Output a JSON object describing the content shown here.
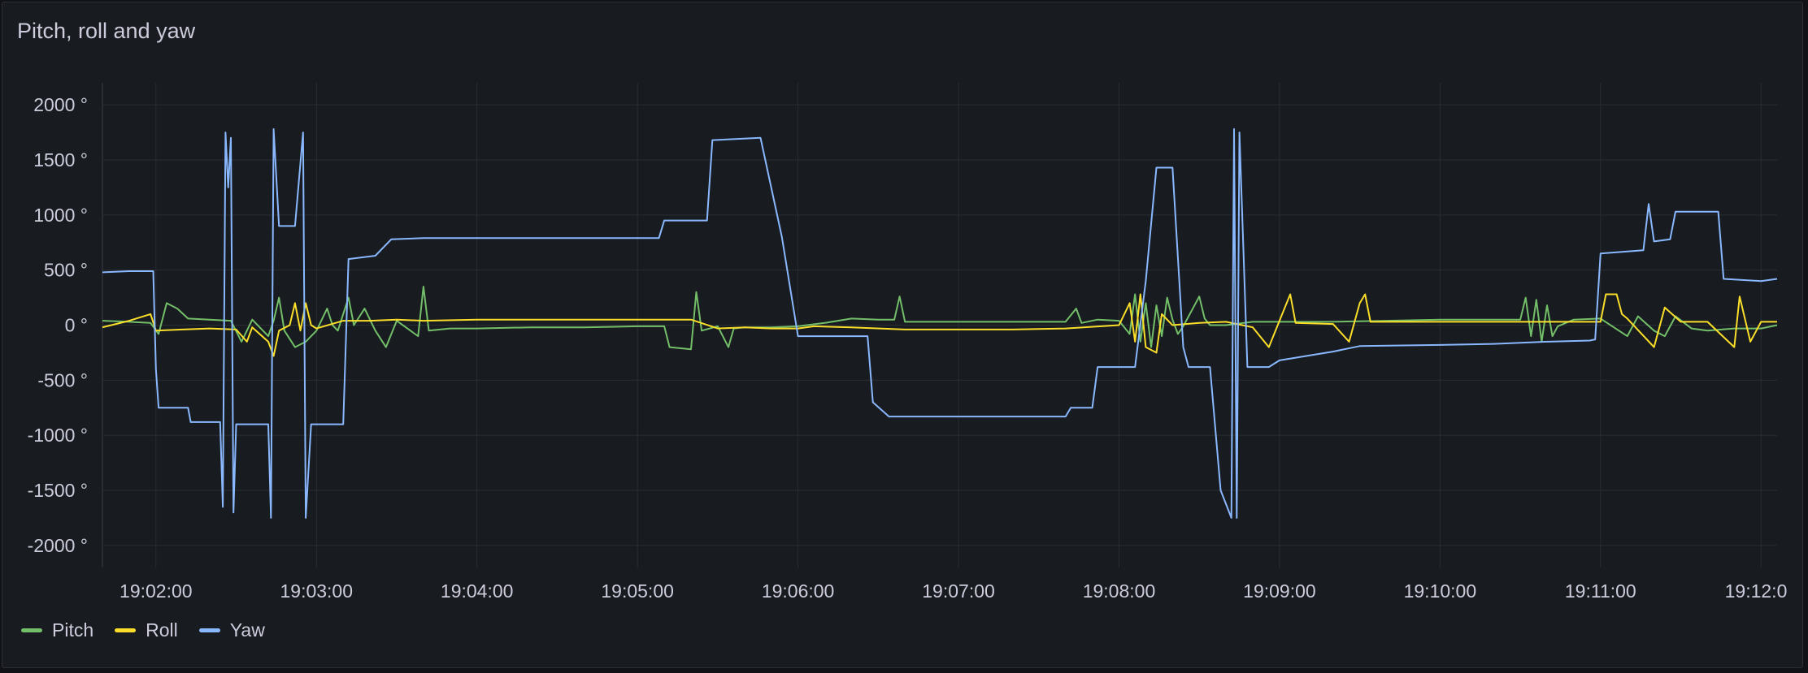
{
  "panel": {
    "title": "Pitch, roll and yaw"
  },
  "colors": {
    "background": "#181b1f",
    "grid": "#2a2d33",
    "text": "#ccccdc",
    "pitch": "#73bf69",
    "roll": "#fade2a",
    "yaw": "#8ab8ff"
  },
  "chart_data": {
    "type": "line",
    "title": "Pitch, roll and yaw",
    "ylim": [
      -2200,
      2200
    ],
    "yticks": [
      2000,
      1500,
      1000,
      500,
      0,
      -500,
      -1000,
      -1500,
      -2000
    ],
    "ytick_labels": [
      "2000 °",
      "1500 °",
      "1000 °",
      "500 °",
      "0 °",
      "-500 °",
      "-1000 °",
      "-1500 °",
      "-2000 °"
    ],
    "xlim": [
      "19:01:40",
      "19:12:06"
    ],
    "xticks": [
      "19:02:00",
      "19:03:00",
      "19:04:00",
      "19:05:00",
      "19:06:00",
      "19:07:00",
      "19:08:00",
      "19:09:00",
      "19:10:00",
      "19:11:00",
      "19:12:00"
    ],
    "xtick_labels": [
      "19:02:00",
      "19:03:00",
      "19:04:00",
      "19:05:00",
      "19:06:00",
      "19:07:00",
      "19:08:00",
      "19:09:00",
      "19:10:00",
      "19:11:00",
      "19:12:0"
    ],
    "grid": true,
    "legend": "bottom-left",
    "series": [
      {
        "name": "Pitch",
        "color": "#73bf69",
        "points": [
          [
            "19:01:40",
            40
          ],
          [
            "19:01:50",
            30
          ],
          [
            "19:01:58",
            20
          ],
          [
            "19:02:01",
            -80
          ],
          [
            "19:02:04",
            200
          ],
          [
            "19:02:08",
            150
          ],
          [
            "19:02:12",
            60
          ],
          [
            "19:02:20",
            50
          ],
          [
            "19:02:28",
            40
          ],
          [
            "19:02:32",
            -150
          ],
          [
            "19:02:36",
            50
          ],
          [
            "19:02:42",
            -100
          ],
          [
            "19:02:44",
            40
          ],
          [
            "19:02:46",
            250
          ],
          [
            "19:02:48",
            -50
          ],
          [
            "19:02:52",
            -200
          ],
          [
            "19:02:56",
            -150
          ],
          [
            "19:03:00",
            -50
          ],
          [
            "19:03:04",
            150
          ],
          [
            "19:03:06",
            0
          ],
          [
            "19:03:08",
            -50
          ],
          [
            "19:03:12",
            250
          ],
          [
            "19:03:14",
            0
          ],
          [
            "19:03:18",
            150
          ],
          [
            "19:03:22",
            -50
          ],
          [
            "19:03:26",
            -200
          ],
          [
            "19:03:30",
            40
          ],
          [
            "19:03:34",
            -30
          ],
          [
            "19:03:38",
            -100
          ],
          [
            "19:03:40",
            350
          ],
          [
            "19:03:42",
            -50
          ],
          [
            "19:03:50",
            -30
          ],
          [
            "19:04:00",
            -30
          ],
          [
            "19:04:20",
            -20
          ],
          [
            "19:04:40",
            -20
          ],
          [
            "19:05:00",
            -10
          ],
          [
            "19:05:10",
            -10
          ],
          [
            "19:05:12",
            -200
          ],
          [
            "19:05:20",
            -220
          ],
          [
            "19:05:22",
            300
          ],
          [
            "19:05:24",
            -50
          ],
          [
            "19:05:30",
            -10
          ],
          [
            "19:05:34",
            -200
          ],
          [
            "19:05:36",
            -30
          ],
          [
            "19:05:40",
            -20
          ],
          [
            "19:05:50",
            -20
          ],
          [
            "19:06:00",
            -10
          ],
          [
            "19:06:10",
            20
          ],
          [
            "19:06:20",
            60
          ],
          [
            "19:06:30",
            50
          ],
          [
            "19:06:36",
            50
          ],
          [
            "19:06:38",
            260
          ],
          [
            "19:06:40",
            30
          ],
          [
            "19:06:50",
            30
          ],
          [
            "19:07:00",
            30
          ],
          [
            "19:07:20",
            30
          ],
          [
            "19:07:40",
            30
          ],
          [
            "19:07:44",
            150
          ],
          [
            "19:07:46",
            20
          ],
          [
            "19:07:52",
            50
          ],
          [
            "19:08:00",
            40
          ],
          [
            "19:08:04",
            -80
          ],
          [
            "19:08:06",
            280
          ],
          [
            "19:08:08",
            -150
          ],
          [
            "19:08:10",
            200
          ],
          [
            "19:08:12",
            -200
          ],
          [
            "19:08:14",
            180
          ],
          [
            "19:08:16",
            -100
          ],
          [
            "19:08:18",
            250
          ],
          [
            "19:08:20",
            50
          ],
          [
            "19:08:22",
            -80
          ],
          [
            "19:08:24",
            -10
          ],
          [
            "19:08:30",
            260
          ],
          [
            "19:08:32",
            60
          ],
          [
            "19:08:34",
            0
          ],
          [
            "19:08:40",
            0
          ],
          [
            "19:08:50",
            30
          ],
          [
            "19:09:00",
            30
          ],
          [
            "19:09:20",
            30
          ],
          [
            "19:09:40",
            40
          ],
          [
            "19:10:00",
            50
          ],
          [
            "19:10:20",
            50
          ],
          [
            "19:10:30",
            50
          ],
          [
            "19:10:32",
            250
          ],
          [
            "19:10:34",
            -100
          ],
          [
            "19:10:36",
            230
          ],
          [
            "19:10:38",
            -150
          ],
          [
            "19:10:40",
            180
          ],
          [
            "19:10:42",
            -100
          ],
          [
            "19:10:44",
            -10
          ],
          [
            "19:10:50",
            50
          ],
          [
            "19:11:00",
            60
          ],
          [
            "19:11:10",
            -100
          ],
          [
            "19:11:14",
            80
          ],
          [
            "19:11:20",
            -50
          ],
          [
            "19:11:24",
            -100
          ],
          [
            "19:11:28",
            80
          ],
          [
            "19:11:34",
            -30
          ],
          [
            "19:11:40",
            -50
          ],
          [
            "19:11:50",
            -30
          ],
          [
            "19:12:00",
            -30
          ],
          [
            "19:12:06",
            0
          ]
        ]
      },
      {
        "name": "Roll",
        "color": "#fade2a",
        "points": [
          [
            "19:01:40",
            -20
          ],
          [
            "19:01:50",
            40
          ],
          [
            "19:01:58",
            100
          ],
          [
            "19:02:00",
            -50
          ],
          [
            "19:02:10",
            -40
          ],
          [
            "19:02:20",
            -30
          ],
          [
            "19:02:30",
            -40
          ],
          [
            "19:02:34",
            -150
          ],
          [
            "19:02:36",
            -20
          ],
          [
            "19:02:42",
            -150
          ],
          [
            "19:02:44",
            -280
          ],
          [
            "19:02:46",
            -50
          ],
          [
            "19:02:50",
            0
          ],
          [
            "19:02:52",
            200
          ],
          [
            "19:02:54",
            -50
          ],
          [
            "19:02:56",
            200
          ],
          [
            "19:02:58",
            0
          ],
          [
            "19:03:00",
            -30
          ],
          [
            "19:03:10",
            40
          ],
          [
            "19:03:20",
            40
          ],
          [
            "19:03:30",
            50
          ],
          [
            "19:03:40",
            40
          ],
          [
            "19:04:00",
            50
          ],
          [
            "19:04:20",
            50
          ],
          [
            "19:04:40",
            50
          ],
          [
            "19:05:00",
            50
          ],
          [
            "19:05:10",
            50
          ],
          [
            "19:05:20",
            50
          ],
          [
            "19:05:30",
            -30
          ],
          [
            "19:05:40",
            -20
          ],
          [
            "19:05:50",
            -30
          ],
          [
            "19:06:00",
            -30
          ],
          [
            "19:06:06",
            -10
          ],
          [
            "19:06:20",
            -20
          ],
          [
            "19:06:40",
            -40
          ],
          [
            "19:07:00",
            -40
          ],
          [
            "19:07:20",
            -40
          ],
          [
            "19:07:40",
            -30
          ],
          [
            "19:08:00",
            0
          ],
          [
            "19:08:04",
            200
          ],
          [
            "19:08:06",
            -150
          ],
          [
            "19:08:08",
            280
          ],
          [
            "19:08:10",
            -200
          ],
          [
            "19:08:14",
            -250
          ],
          [
            "19:08:16",
            100
          ],
          [
            "19:08:20",
            0
          ],
          [
            "19:08:30",
            20
          ],
          [
            "19:08:40",
            30
          ],
          [
            "19:08:50",
            -20
          ],
          [
            "19:08:56",
            -200
          ],
          [
            "19:09:00",
            40
          ],
          [
            "19:09:04",
            280
          ],
          [
            "19:09:06",
            20
          ],
          [
            "19:09:20",
            10
          ],
          [
            "19:09:26",
            -150
          ],
          [
            "19:09:30",
            200
          ],
          [
            "19:09:32",
            280
          ],
          [
            "19:09:34",
            30
          ],
          [
            "19:10:00",
            30
          ],
          [
            "19:10:20",
            30
          ],
          [
            "19:10:40",
            30
          ],
          [
            "19:10:50",
            30
          ],
          [
            "19:11:00",
            30
          ],
          [
            "19:11:02",
            280
          ],
          [
            "19:11:06",
            280
          ],
          [
            "19:11:08",
            100
          ],
          [
            "19:11:10",
            60
          ],
          [
            "19:11:20",
            -200
          ],
          [
            "19:11:24",
            160
          ],
          [
            "19:11:30",
            30
          ],
          [
            "19:11:40",
            30
          ],
          [
            "19:11:50",
            -200
          ],
          [
            "19:11:52",
            260
          ],
          [
            "19:11:56",
            -150
          ],
          [
            "19:12:00",
            30
          ],
          [
            "19:12:06",
            30
          ]
        ]
      },
      {
        "name": "Yaw",
        "color": "#8ab8ff",
        "points": [
          [
            "19:01:40",
            480
          ],
          [
            "19:01:50",
            490
          ],
          [
            "19:01:59",
            490
          ],
          [
            "19:02:00",
            -400
          ],
          [
            "19:02:01",
            -750
          ],
          [
            "19:02:12",
            -750
          ],
          [
            "19:02:13",
            -880
          ],
          [
            "19:02:24",
            -880
          ],
          [
            "19:02:25",
            -1650
          ],
          [
            "19:02:26",
            1750
          ],
          [
            "19:02:27",
            1250
          ],
          [
            "19:02:28",
            1700
          ],
          [
            "19:02:29",
            -1700
          ],
          [
            "19:02:30",
            -900
          ],
          [
            "19:02:42",
            -900
          ],
          [
            "19:02:43",
            -1750
          ],
          [
            "19:02:44",
            1780
          ],
          [
            "19:02:46",
            900
          ],
          [
            "19:02:52",
            900
          ],
          [
            "19:02:55",
            1750
          ],
          [
            "19:02:56",
            -1750
          ],
          [
            "19:02:58",
            -900
          ],
          [
            "19:03:10",
            -900
          ],
          [
            "19:03:12",
            600
          ],
          [
            "19:03:22",
            630
          ],
          [
            "19:03:28",
            780
          ],
          [
            "19:03:40",
            790
          ],
          [
            "19:04:00",
            790
          ],
          [
            "19:05:08",
            790
          ],
          [
            "19:05:10",
            950
          ],
          [
            "19:05:26",
            950
          ],
          [
            "19:05:28",
            1680
          ],
          [
            "19:05:46",
            1700
          ],
          [
            "19:05:54",
            800
          ],
          [
            "19:06:00",
            -100
          ],
          [
            "19:06:26",
            -100
          ],
          [
            "19:06:28",
            -700
          ],
          [
            "19:06:34",
            -830
          ],
          [
            "19:07:00",
            -830
          ],
          [
            "19:07:40",
            -830
          ],
          [
            "19:07:42",
            -750
          ],
          [
            "19:07:50",
            -750
          ],
          [
            "19:07:52",
            -380
          ],
          [
            "19:08:06",
            -380
          ],
          [
            "19:08:10",
            400
          ],
          [
            "19:08:14",
            1430
          ],
          [
            "19:08:20",
            1430
          ],
          [
            "19:08:24",
            -200
          ],
          [
            "19:08:26",
            -380
          ],
          [
            "19:08:34",
            -380
          ],
          [
            "19:08:38",
            -1500
          ],
          [
            "19:08:42",
            -1750
          ],
          [
            "19:08:43",
            1780
          ],
          [
            "19:08:44",
            -1750
          ],
          [
            "19:08:45",
            1750
          ],
          [
            "19:08:48",
            -380
          ],
          [
            "19:08:56",
            -380
          ],
          [
            "19:09:00",
            -320
          ],
          [
            "19:09:10",
            -280
          ],
          [
            "19:09:20",
            -240
          ],
          [
            "19:09:30",
            -190
          ],
          [
            "19:10:00",
            -180
          ],
          [
            "19:10:20",
            -170
          ],
          [
            "19:10:40",
            -150
          ],
          [
            "19:10:56",
            -140
          ],
          [
            "19:10:58",
            -130
          ],
          [
            "19:11:00",
            650
          ],
          [
            "19:11:16",
            680
          ],
          [
            "19:11:18",
            1100
          ],
          [
            "19:11:20",
            760
          ],
          [
            "19:11:26",
            780
          ],
          [
            "19:11:28",
            1030
          ],
          [
            "19:11:44",
            1030
          ],
          [
            "19:11:46",
            420
          ],
          [
            "19:12:00",
            400
          ],
          [
            "19:12:06",
            420
          ]
        ]
      }
    ]
  }
}
